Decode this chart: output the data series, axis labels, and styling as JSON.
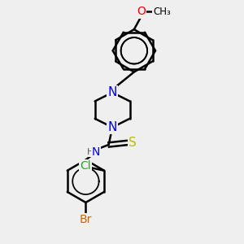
{
  "bg_color": "#efefef",
  "line_color": "#000000",
  "bond_width": 1.8,
  "font_size": 9,
  "colors": {
    "N": "#0000ee",
    "O": "#ee0000",
    "S": "#bbbb00",
    "Cl": "#22aa22",
    "Br": "#cc6600",
    "C": "#000000",
    "H": "#555555"
  }
}
